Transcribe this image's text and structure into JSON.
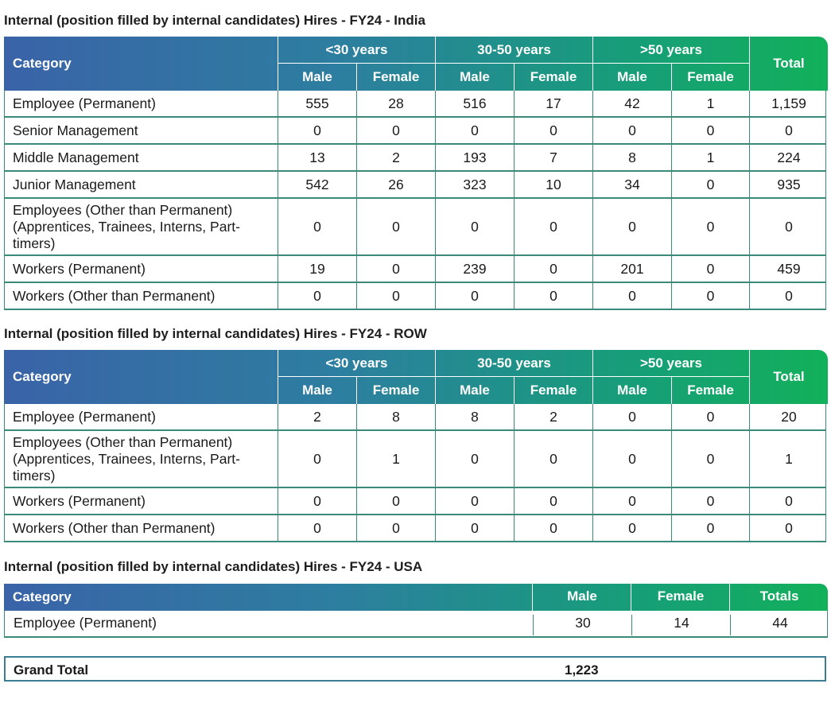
{
  "india": {
    "title": "Internal (position filled by internal candidates) Hires - FY24 - India",
    "header": {
      "category": "Category",
      "groups": [
        "<30 years",
        "30-50 years",
        ">50 years"
      ],
      "sub": [
        "Male",
        "Female",
        "Male",
        "Female",
        "Male",
        "Female"
      ],
      "total": "Total"
    },
    "rows": [
      {
        "label": "Employee (Permanent)",
        "v": [
          "555",
          "28",
          "516",
          "17",
          "42",
          "1",
          "1,159"
        ]
      },
      {
        "label": "Senior Management",
        "v": [
          "0",
          "0",
          "0",
          "0",
          "0",
          "0",
          "0"
        ]
      },
      {
        "label": "Middle Management",
        "v": [
          "13",
          "2",
          "193",
          "7",
          "8",
          "1",
          "224"
        ]
      },
      {
        "label": "Junior Management",
        "v": [
          "542",
          "26",
          "323",
          "10",
          "34",
          "0",
          "935"
        ]
      },
      {
        "label": "Employees (Other than Permanent) (Apprentices, Trainees, Interns, Part-timers)",
        "v": [
          "0",
          "0",
          "0",
          "0",
          "0",
          "0",
          "0"
        ]
      },
      {
        "label": "Workers (Permanent)",
        "v": [
          "19",
          "0",
          "239",
          "0",
          "201",
          "0",
          "459"
        ]
      },
      {
        "label": "Workers (Other than Permanent)",
        "v": [
          "0",
          "0",
          "0",
          "0",
          "0",
          "0",
          "0"
        ]
      }
    ]
  },
  "row": {
    "title": "Internal (position filled by internal candidates) Hires - FY24 - ROW",
    "header": {
      "category": "Category",
      "groups": [
        "<30 years",
        "30-50 years",
        ">50 years"
      ],
      "sub": [
        "Male",
        "Female",
        "Male",
        "Female",
        "Male",
        "Female"
      ],
      "total": "Total"
    },
    "rows": [
      {
        "label": "Employee (Permanent)",
        "v": [
          "2",
          "8",
          "8",
          "2",
          "0",
          "0",
          "20"
        ]
      },
      {
        "label": "Employees (Other than Permanent) (Apprentices, Trainees, Interns, Part-timers)",
        "v": [
          "0",
          "1",
          "0",
          "0",
          "0",
          "0",
          "1"
        ]
      },
      {
        "label": "Workers (Permanent)",
        "v": [
          "0",
          "0",
          "0",
          "0",
          "0",
          "0",
          "0"
        ]
      },
      {
        "label": "Workers (Other than Permanent)",
        "v": [
          "0",
          "0",
          "0",
          "0",
          "0",
          "0",
          "0"
        ]
      }
    ]
  },
  "usa": {
    "title": "Internal (position filled by internal candidates) Hires - FY24 - USA",
    "header": {
      "category": "Category",
      "male": "Male",
      "female": "Female",
      "totals": "Totals"
    },
    "rows": [
      {
        "label": "Employee (Permanent)",
        "male": "30",
        "female": "14",
        "total": "44"
      }
    ]
  },
  "grand_total": {
    "label": "Grand Total",
    "value": "1,223"
  },
  "colors": {
    "header_start": "#3a63a8",
    "header_end": "#12b05a",
    "row_rule": "#3a8a7a"
  }
}
